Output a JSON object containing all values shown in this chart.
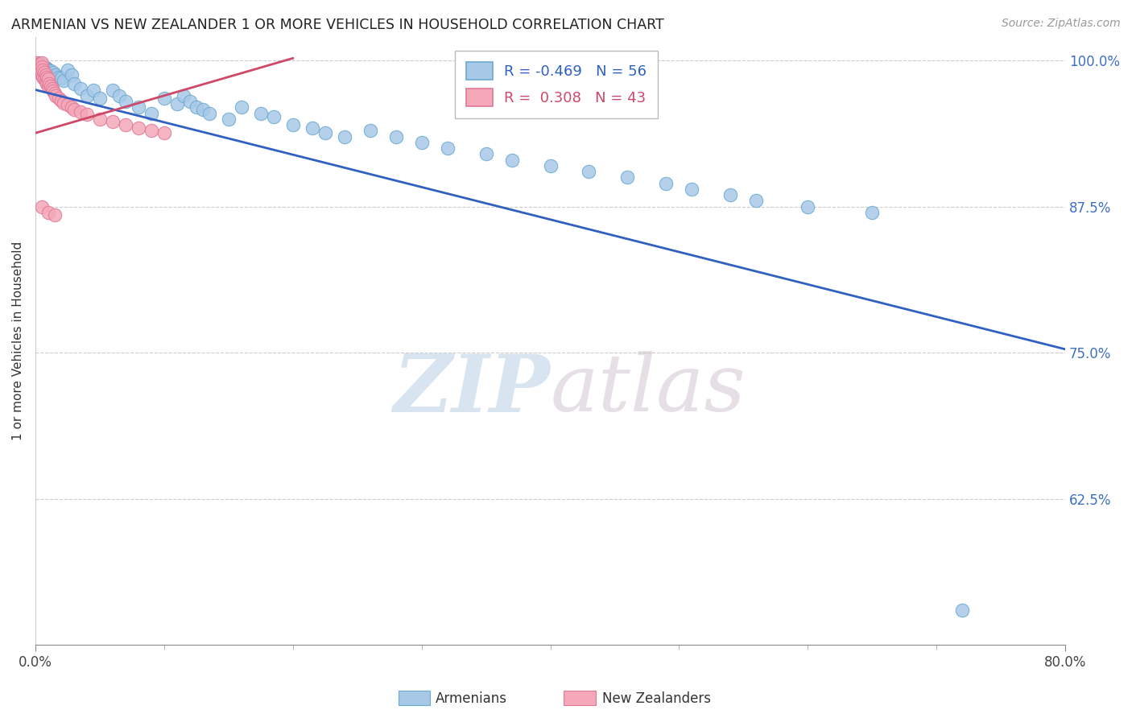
{
  "title": "ARMENIAN VS NEW ZEALANDER 1 OR MORE VEHICLES IN HOUSEHOLD CORRELATION CHART",
  "source": "Source: ZipAtlas.com",
  "ylabel": "1 or more Vehicles in Household",
  "legend_blue_r": "-0.469",
  "legend_blue_n": "56",
  "legend_pink_r": "0.308",
  "legend_pink_n": "43",
  "blue_color": "#a8c8e8",
  "blue_edge": "#6aaad0",
  "pink_color": "#f4a8b8",
  "pink_edge": "#e07898",
  "line_blue": "#3060c0",
  "line_pink": "#d04868",
  "xlim": [
    0.0,
    0.8
  ],
  "ylim": [
    0.5,
    1.02
  ],
  "yticks": [
    0.625,
    0.75,
    0.875,
    1.0
  ],
  "ytick_labels": [
    "62.5%",
    "75.0%",
    "87.5%",
    "100.0%"
  ],
  "arm_x": [
    0.003,
    0.005,
    0.006,
    0.007,
    0.008,
    0.009,
    0.01,
    0.012,
    0.014,
    0.016,
    0.018,
    0.02,
    0.022,
    0.025,
    0.028,
    0.03,
    0.035,
    0.04,
    0.045,
    0.05,
    0.06,
    0.065,
    0.07,
    0.08,
    0.09,
    0.1,
    0.11,
    0.115,
    0.12,
    0.125,
    0.13,
    0.135,
    0.15,
    0.16,
    0.175,
    0.185,
    0.2,
    0.215,
    0.225,
    0.24,
    0.26,
    0.28,
    0.3,
    0.32,
    0.35,
    0.37,
    0.4,
    0.43,
    0.46,
    0.49,
    0.51,
    0.54,
    0.56,
    0.6,
    0.65,
    0.72
  ],
  "arm_y": [
    0.998,
    0.996,
    0.996,
    0.994,
    0.994,
    0.993,
    0.992,
    0.991,
    0.99,
    0.988,
    0.986,
    0.985,
    0.983,
    0.992,
    0.988,
    0.98,
    0.976,
    0.97,
    0.975,
    0.968,
    0.975,
    0.97,
    0.965,
    0.96,
    0.955,
    0.968,
    0.963,
    0.97,
    0.965,
    0.96,
    0.958,
    0.955,
    0.95,
    0.96,
    0.955,
    0.952,
    0.945,
    0.942,
    0.938,
    0.935,
    0.94,
    0.935,
    0.93,
    0.925,
    0.92,
    0.915,
    0.91,
    0.905,
    0.9,
    0.895,
    0.89,
    0.885,
    0.88,
    0.875,
    0.87,
    0.53
  ],
  "nz_x": [
    0.001,
    0.002,
    0.002,
    0.003,
    0.003,
    0.004,
    0.004,
    0.005,
    0.005,
    0.005,
    0.006,
    0.006,
    0.007,
    0.007,
    0.008,
    0.008,
    0.009,
    0.009,
    0.01,
    0.01,
    0.011,
    0.012,
    0.013,
    0.014,
    0.015,
    0.016,
    0.018,
    0.02,
    0.022,
    0.025,
    0.028,
    0.03,
    0.035,
    0.04,
    0.05,
    0.06,
    0.07,
    0.08,
    0.09,
    0.1,
    0.005,
    0.01,
    0.015
  ],
  "nz_y": [
    0.998,
    0.997,
    0.995,
    0.994,
    0.992,
    0.996,
    0.99,
    0.998,
    0.995,
    0.988,
    0.992,
    0.986,
    0.99,
    0.984,
    0.988,
    0.982,
    0.986,
    0.98,
    0.984,
    0.978,
    0.98,
    0.978,
    0.976,
    0.974,
    0.972,
    0.97,
    0.968,
    0.966,
    0.964,
    0.962,
    0.96,
    0.958,
    0.956,
    0.954,
    0.95,
    0.948,
    0.945,
    0.942,
    0.94,
    0.938,
    0.875,
    0.87,
    0.868
  ],
  "blue_line_x": [
    0.0,
    0.8
  ],
  "blue_line_y": [
    0.975,
    0.753
  ],
  "pink_line_x": [
    0.0,
    0.2
  ],
  "pink_line_y": [
    0.938,
    1.002
  ]
}
